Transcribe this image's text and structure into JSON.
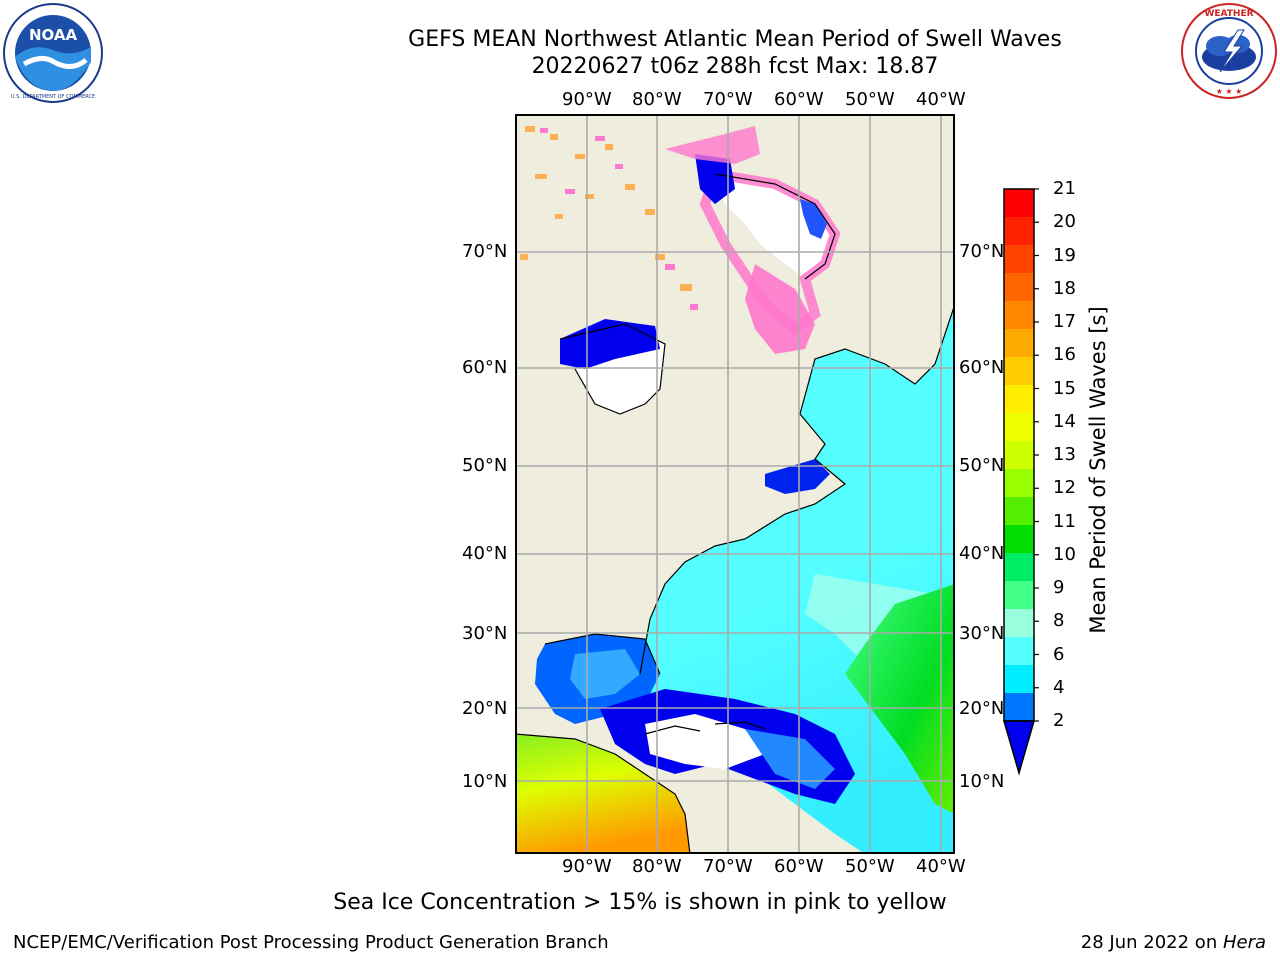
{
  "header": {
    "title_line1": "GEFS MEAN Northwest Atlantic Mean Period of Swell Waves",
    "title_line2": "20220627 t06z 288h fcst   Max: 18.87"
  },
  "map": {
    "lon_labels": [
      "90°W",
      "80°W",
      "70°W",
      "60°W",
      "50°W",
      "40°W"
    ],
    "lat_labels": [
      "70°N",
      "60°N",
      "50°N",
      "40°N",
      "30°N",
      "20°N",
      "10°N"
    ],
    "land_color": "#efedde",
    "ocean_nodata_color": "#ffffff"
  },
  "colorbar": {
    "title": "Mean Period of Swell Waves [s]",
    "ticks": [
      "21",
      "20",
      "19",
      "18",
      "17",
      "16",
      "15",
      "14",
      "13",
      "12",
      "11",
      "10",
      "9",
      "8",
      "6",
      "4",
      "2"
    ],
    "colors_top_to_bottom": [
      "#ff0000",
      "#ff2200",
      "#ff4400",
      "#ff6600",
      "#ff8800",
      "#ffaa00",
      "#ffcc00",
      "#ffee00",
      "#eeff00",
      "#ccff00",
      "#99ff00",
      "#55ee00",
      "#00dd00",
      "#00ee66",
      "#44ff88",
      "#99ffdd",
      "#55ffff",
      "#00eeff",
      "#0077ff"
    ],
    "extend_color": "#0000ee"
  },
  "caption": "Sea Ice Concentration > 15% is shown in pink to yellow",
  "footer": {
    "credit": "NCEP/EMC/Verification Post Processing Product Generation Branch",
    "date_prefix": "28 Jun 2022 on ",
    "date_machine": "Hera"
  },
  "logos": {
    "left": "noaa-logo",
    "right": "national-weather-service-logo"
  }
}
